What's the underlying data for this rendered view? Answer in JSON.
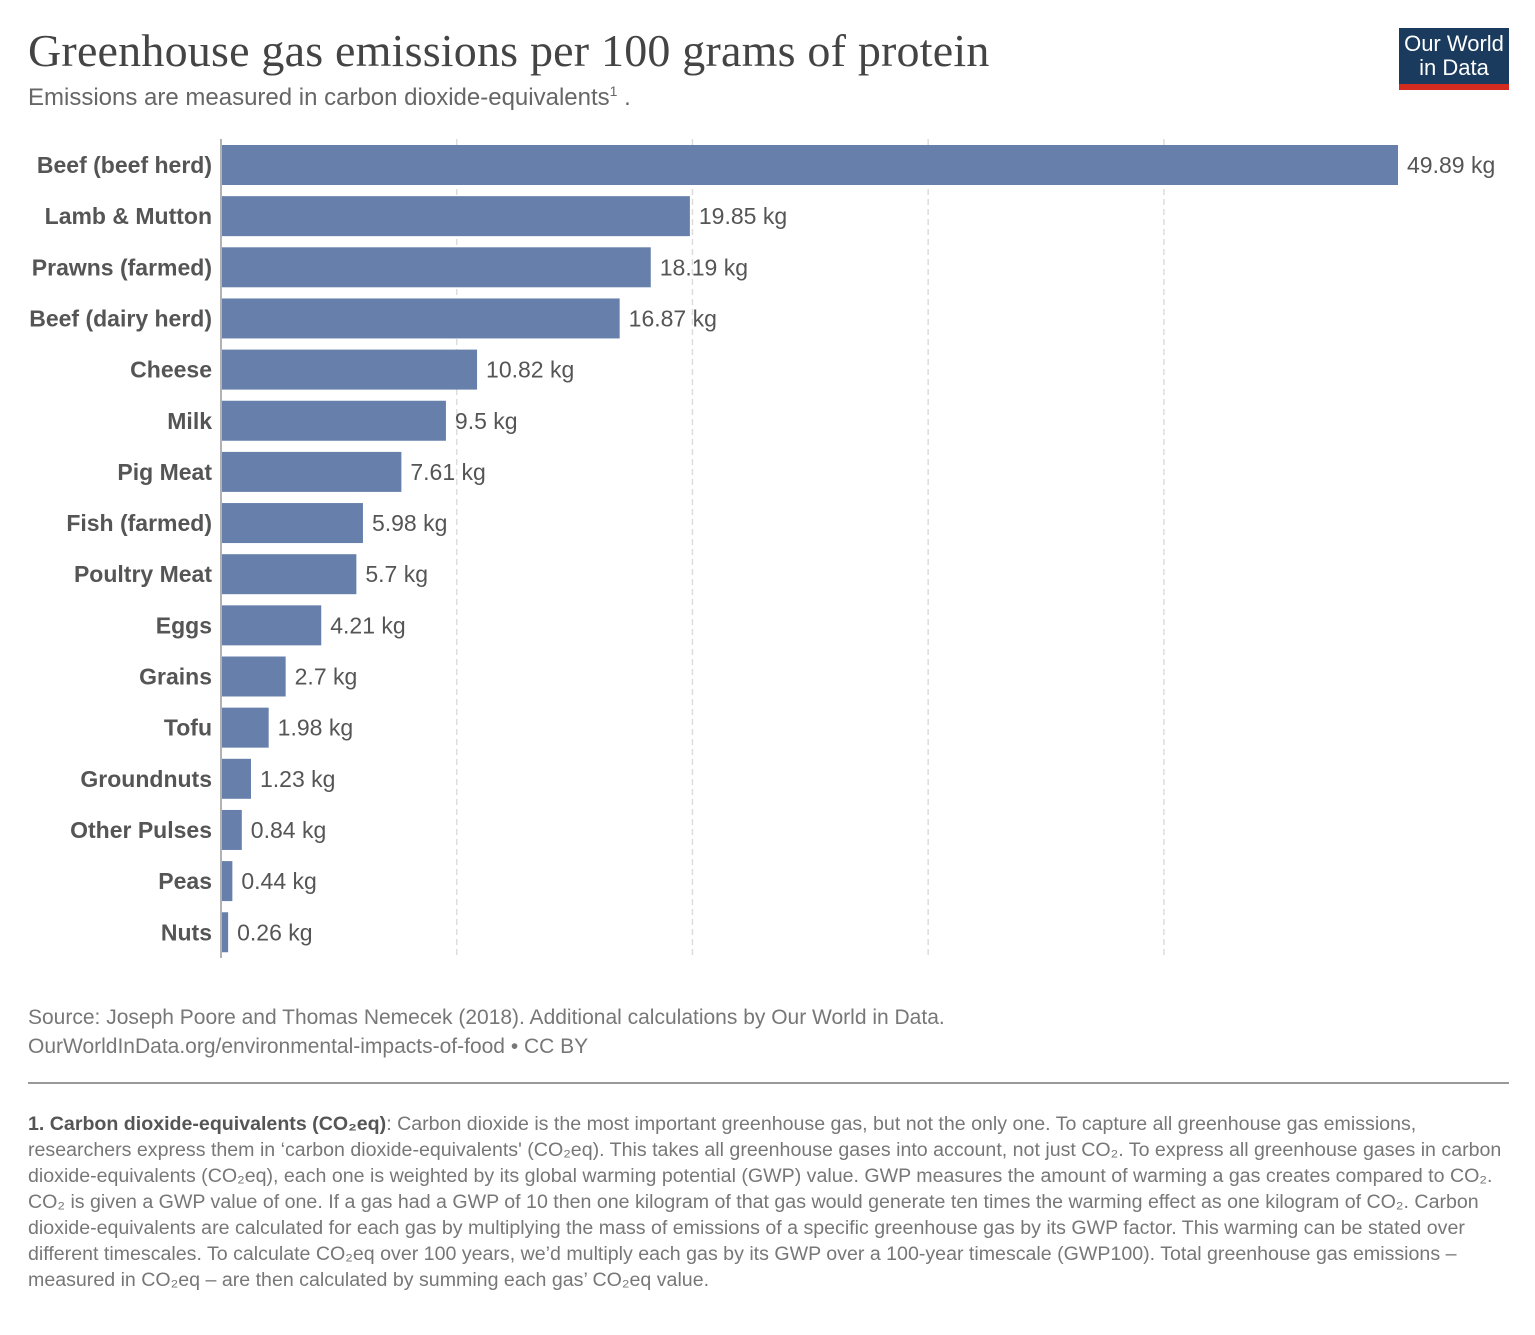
{
  "header": {
    "title": "Greenhouse gas emissions per 100 grams of protein",
    "subtitle": "Emissions are measured in carbon dioxide-equivalents",
    "subtitle_sup": "1",
    "subtitle_end": " ."
  },
  "logo": {
    "line1": "Our World",
    "line2": "in Data"
  },
  "colors": {
    "bar": "#6780ab",
    "logo_bg": "#1a3a5e",
    "logo_accent": "#d42b21",
    "grid": "#dddddd"
  },
  "chart_data": {
    "type": "bar",
    "orientation": "horizontal",
    "categories": [
      "Beef (beef herd)",
      "Lamb & Mutton",
      "Prawns (farmed)",
      "Beef (dairy herd)",
      "Cheese",
      "Milk",
      "Pig Meat",
      "Fish (farmed)",
      "Poultry Meat",
      "Eggs",
      "Grains",
      "Tofu",
      "Groundnuts",
      "Other Pulses",
      "Peas",
      "Nuts"
    ],
    "values": [
      49.89,
      19.85,
      18.19,
      16.87,
      10.82,
      9.5,
      7.61,
      5.98,
      5.7,
      4.21,
      2.7,
      1.98,
      1.23,
      0.84,
      0.44,
      0.26
    ],
    "labels": [
      "49.89 kg",
      "19.85 kg",
      "18.19 kg",
      "16.87 kg",
      "10.82 kg",
      "9.5 kg",
      "7.61 kg",
      "5.98 kg",
      "5.7 kg",
      "4.21 kg",
      "2.7 kg",
      "1.98 kg",
      "1.23 kg",
      "0.84 kg",
      "0.44 kg",
      "0.26 kg"
    ],
    "unit": "kg",
    "xlim": [
      0,
      50
    ],
    "gridlines": [
      10,
      20,
      30,
      40
    ],
    "grid": true
  },
  "footer": {
    "source": "Source: Joseph Poore and Thomas Nemecek (2018). Additional calculations by Our World in Data.",
    "url": "OurWorldInData.org/environmental-impacts-of-food • CC BY",
    "note_heading": "1. Carbon dioxide-equivalents (CO₂eq)",
    "note_text": ": Carbon dioxide is the most important greenhouse gas, but not the only one. To capture all greenhouse gas emissions, researchers express them in ‘carbon dioxide-equivalents' (CO₂eq). This takes all greenhouse gases into account, not just CO₂. To express all greenhouse gases in carbon dioxide-equivalents (CO₂eq), each one is weighted by its global warming potential (GWP) value. GWP measures the amount of warming a gas creates compared to CO₂. CO₂ is given a GWP value of one. If a gas had a GWP of 10 then one kilogram of that gas would generate ten times the warming effect as one kilogram of CO₂. Carbon dioxide-equivalents are calculated for each gas by multiplying the mass of emissions of a specific greenhouse gas by its GWP factor. This warming can be stated over different timescales. To calculate CO₂eq over 100 years, we’d multiply each gas by its GWP over a 100-year timescale (GWP100). Total greenhouse gas emissions – measured in CO₂eq – are then calculated by summing each gas’ CO₂eq value."
  }
}
